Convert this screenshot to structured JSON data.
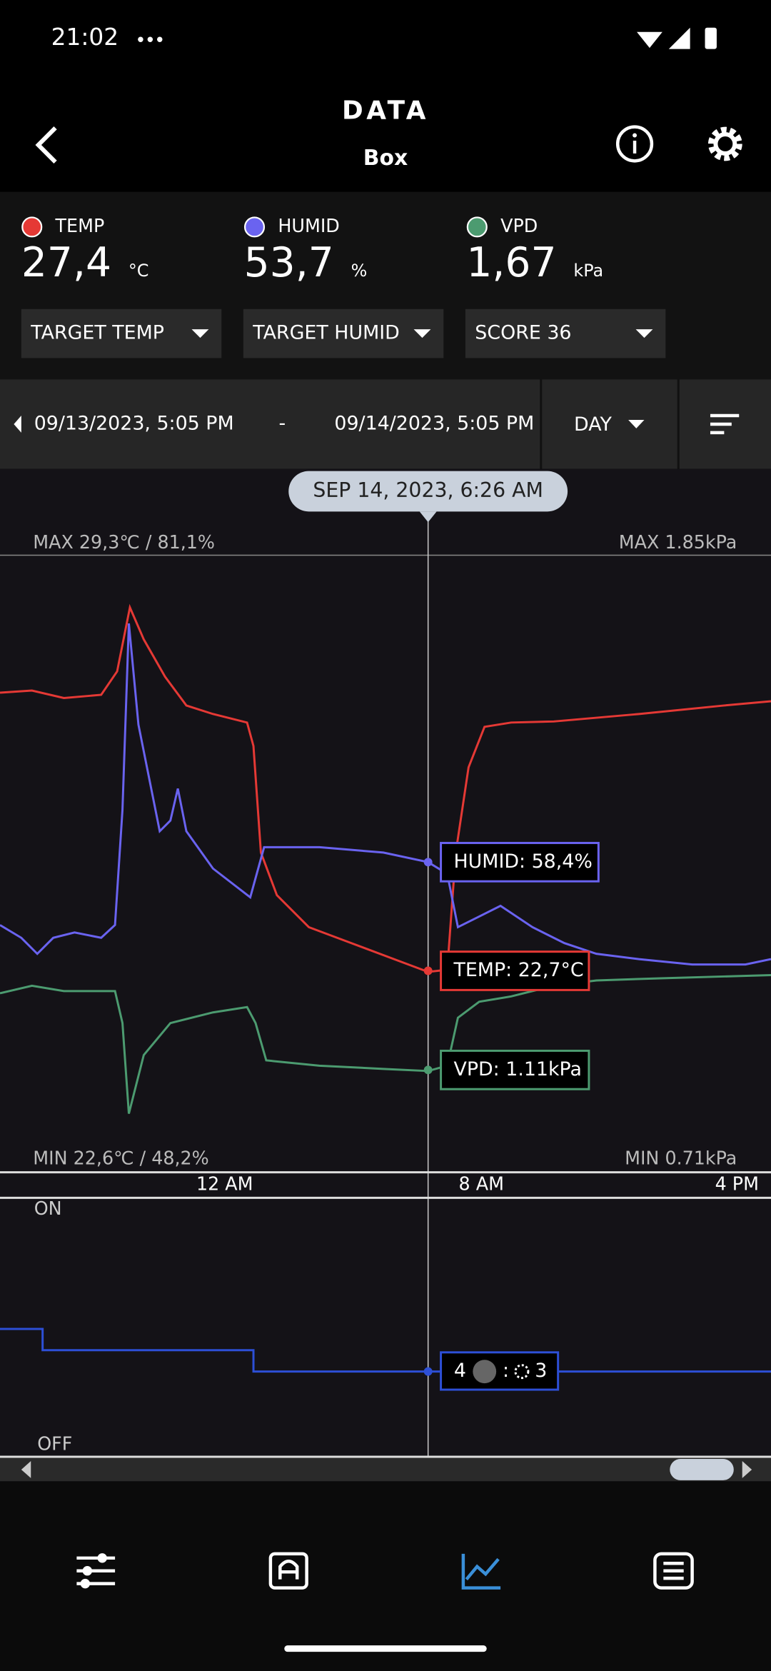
{
  "status": {
    "time": "21:02"
  },
  "header": {
    "title": "DATA",
    "subtitle": "Box"
  },
  "readings": [
    {
      "label": "TEMP",
      "value": "27,4",
      "unit": "°C"
    },
    {
      "label": "HUMID",
      "value": "53,7",
      "unit": "%"
    },
    {
      "label": "VPD",
      "value": "1,67",
      "unit": "kPa"
    }
  ],
  "dropdowns": [
    "TARGET TEMP",
    "TARGET HUMID",
    "SCORE 36"
  ],
  "range": {
    "start": "09/13/2023, 5:05 PM",
    "separator": "-",
    "end": "09/14/2023, 5:05 PM",
    "period": "DAY"
  },
  "chart": {
    "cursor": "SEP 14, 2023, 6:26 AM",
    "max_left": "MAX 29,3℃ / 81,1%",
    "max_right": "MAX 1.85kPa",
    "min_left": "MIN 22,6℃ / 48,2%",
    "min_right": "MIN 0.71kPa",
    "tooltips": [
      "HUMID: 58,4%",
      "TEMP: 22,7°C",
      "VPD: 1.11kPa"
    ],
    "time_labels": [
      "12 AM",
      "8 AM",
      "4 PM"
    ]
  },
  "device": {
    "on": "ON",
    "off": "OFF",
    "left": "4",
    "separator": ":",
    "right": "3"
  }
}
